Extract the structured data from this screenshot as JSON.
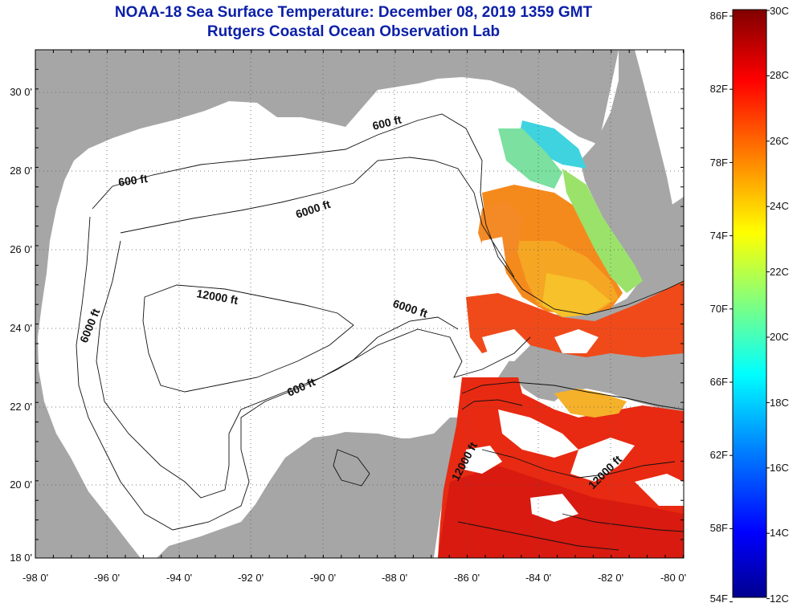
{
  "title": "NOAA-18 Sea Surface Temperature:  December 08, 2019 1359 GMT",
  "subtitle": "Rutgers Coastal Ocean Observation Lab",
  "map": {
    "lat_labels": [
      "30 0'",
      "28 0'",
      "26 0'",
      "24 0'",
      "22 0'",
      "20 0'",
      "18 0'"
    ],
    "lon_labels": [
      "-98 0'",
      "-96 0'",
      "-94 0'",
      "-92 0'",
      "-90 0'",
      "-88 0'",
      "-86 0'",
      "-84 0'",
      "-82 0'",
      "-80 0'"
    ],
    "lon_range": [
      -98,
      -80
    ],
    "lat_range": [
      18,
      31
    ],
    "grid": "dotted",
    "contour_labels": [
      "600 ft",
      "6000 ft",
      "600 ft",
      "12000 ft",
      "6000 ft",
      "6000 ft",
      "600 ft",
      "12000 ft",
      "12000 ft"
    ],
    "land_color": "#a6a6a6",
    "nodata_color": "#ffffff"
  },
  "colorbar": {
    "fahrenheit_labels": [
      "86F",
      "82F",
      "78F",
      "74F",
      "70F",
      "66F",
      "62F",
      "58F",
      "54F"
    ],
    "celsius_labels": [
      "30C",
      "28C",
      "26C",
      "24C",
      "22C",
      "20C",
      "18C",
      "16C",
      "14C",
      "12C"
    ],
    "range_c": [
      12,
      30
    ],
    "colors": [
      "#00008f",
      "#0000ff",
      "#0080ff",
      "#00ffff",
      "#80ff80",
      "#ffff00",
      "#ff8000",
      "#ff0000",
      "#800000"
    ]
  }
}
